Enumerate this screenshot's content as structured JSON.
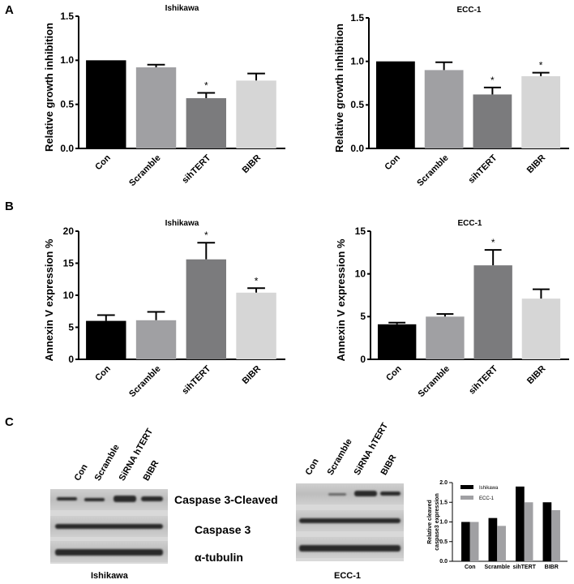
{
  "panel_labels": [
    "A",
    "B",
    "C"
  ],
  "colors": [
    "#000000",
    "#a0a0a3",
    "#7b7b7d",
    "#d6d6d6"
  ],
  "chart_data": [
    {
      "type": "bar",
      "title": "Ishikawa",
      "ylabel": "Relative growth inhibition",
      "categories": [
        "Con",
        "Scramble",
        "sihTERT",
        "BIBR"
      ],
      "values": [
        1.0,
        0.92,
        0.57,
        0.77
      ],
      "errors": [
        0,
        0.03,
        0.06,
        0.08
      ],
      "significant": [
        false,
        false,
        true,
        false
      ],
      "ylim": [
        0,
        1.5
      ],
      "yticks": [
        "0.0",
        "0.5",
        "1.0",
        "1.5"
      ]
    },
    {
      "type": "bar",
      "title": "ECC-1",
      "ylabel": "Relative growth inhibition",
      "categories": [
        "Con",
        "Scramble",
        "sihTERT",
        "BIBR"
      ],
      "values": [
        1.0,
        0.9,
        0.62,
        0.83
      ],
      "errors": [
        0,
        0.09,
        0.08,
        0.04
      ],
      "significant": [
        false,
        false,
        true,
        true
      ],
      "ylim": [
        0,
        1.5
      ],
      "yticks": [
        "0.0",
        "0.5",
        "1.0",
        "1.5"
      ]
    },
    {
      "type": "bar",
      "title": "Ishikawa",
      "ylabel": "Annexin V expression %",
      "categories": [
        "Con",
        "Scramble",
        "sihTERT",
        "BIBR"
      ],
      "values": [
        6.0,
        6.1,
        15.6,
        10.4
      ],
      "errors": [
        0.9,
        1.3,
        2.6,
        0.7
      ],
      "significant": [
        false,
        false,
        true,
        true
      ],
      "ylim": [
        0,
        20
      ],
      "yticks": [
        "0",
        "5",
        "10",
        "15",
        "20"
      ]
    },
    {
      "type": "bar",
      "title": "ECC-1",
      "ylabel": "Annexin V expression %",
      "categories": [
        "Con",
        "Scramble",
        "sihTERT",
        "BIBR"
      ],
      "values": [
        4.1,
        5.0,
        11.0,
        7.1
      ],
      "errors": [
        0.2,
        0.3,
        1.8,
        1.1
      ],
      "significant": [
        false,
        false,
        true,
        false
      ],
      "ylim": [
        0,
        15
      ],
      "yticks": [
        "0",
        "5",
        "10",
        "15"
      ]
    },
    {
      "type": "bar",
      "title": "",
      "ylabel": "Relative cleaved caspase3 expression",
      "categories": [
        "Con",
        "Scramble",
        "sihTERT",
        "BIBR"
      ],
      "series": [
        {
          "name": "Ishikawa",
          "values": [
            1.0,
            1.1,
            1.9,
            1.5
          ],
          "color": "#000000"
        },
        {
          "name": "ECC-1",
          "values": [
            1.0,
            0.9,
            1.5,
            1.3
          ],
          "color": "#a0a0a3"
        }
      ],
      "ylim": [
        0,
        2.0
      ],
      "yticks": [
        "0.0",
        "0.5",
        "1.0",
        "1.5",
        "2.0"
      ],
      "legend": "top-left"
    }
  ],
  "blots": {
    "lanes": [
      "Con",
      "Scramble",
      "SiRNA hTERT",
      "BIBR"
    ],
    "rows": [
      "Caspase 3-Cleaved",
      "Caspase 3",
      "α-tubulin"
    ],
    "captions": [
      "Ishikawa",
      "ECC-1"
    ]
  }
}
